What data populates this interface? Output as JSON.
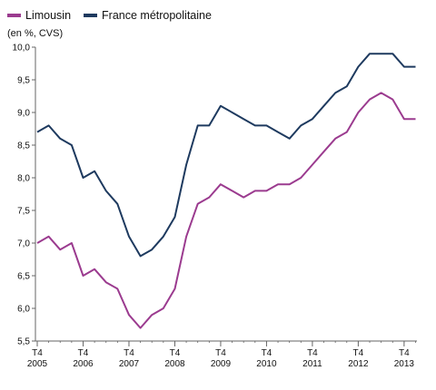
{
  "legend": [
    {
      "name": "Limousin",
      "color": "#9b3b8f"
    },
    {
      "name": "France métropolitaine",
      "color": "#1e3a5f"
    }
  ],
  "unit_label": "(en %, CVS)",
  "chart_data": {
    "type": "line",
    "title": "",
    "xlabel": "",
    "ylabel": "(en %, CVS)",
    "ylim": [
      5.5,
      10.0
    ],
    "y_ticks": [
      "5,5",
      "6,0",
      "6,5",
      "7,0",
      "7,5",
      "8,0",
      "8,5",
      "9,0",
      "9,5",
      "10,0"
    ],
    "x_tick_labels": [
      {
        "quarter": "T4",
        "year": "2005"
      },
      {
        "quarter": "T4",
        "year": "2006"
      },
      {
        "quarter": "T4",
        "year": "2007"
      },
      {
        "quarter": "T4",
        "year": "2008"
      },
      {
        "quarter": "T4",
        "year": "2009"
      },
      {
        "quarter": "T4",
        "year": "2010"
      },
      {
        "quarter": "T4",
        "year": "2011"
      },
      {
        "quarter": "T4",
        "year": "2012"
      },
      {
        "quarter": "T4",
        "year": "2013"
      }
    ],
    "x": [
      "T4 2005",
      "T1 2006",
      "T2 2006",
      "T3 2006",
      "T4 2006",
      "T1 2007",
      "T2 2007",
      "T3 2007",
      "T4 2007",
      "T1 2008",
      "T2 2008",
      "T3 2008",
      "T4 2008",
      "T1 2009",
      "T2 2009",
      "T3 2009",
      "T4 2009",
      "T1 2010",
      "T2 2010",
      "T3 2010",
      "T4 2010",
      "T1 2011",
      "T2 2011",
      "T3 2011",
      "T4 2011",
      "T1 2012",
      "T2 2012",
      "T3 2012",
      "T4 2012",
      "T1 2013",
      "T2 2013",
      "T3 2013",
      "T4 2013",
      "T1 2014"
    ],
    "series": [
      {
        "name": "Limousin",
        "color": "#9b3b8f",
        "values": [
          7.0,
          7.1,
          6.9,
          7.0,
          6.5,
          6.6,
          6.4,
          6.3,
          5.9,
          5.7,
          5.9,
          6.0,
          6.3,
          7.1,
          7.6,
          7.7,
          7.9,
          7.8,
          7.7,
          7.8,
          7.8,
          7.9,
          7.9,
          8.0,
          8.2,
          8.4,
          8.6,
          8.7,
          9.0,
          9.2,
          9.3,
          9.2,
          8.9,
          8.9
        ]
      },
      {
        "name": "France métropolitaine",
        "color": "#1e3a5f",
        "values": [
          8.7,
          8.8,
          8.6,
          8.5,
          8.0,
          8.1,
          7.8,
          7.6,
          7.1,
          6.8,
          6.9,
          7.1,
          7.4,
          8.2,
          8.8,
          8.8,
          9.1,
          9.0,
          8.9,
          8.8,
          8.8,
          8.7,
          8.6,
          8.8,
          8.9,
          9.1,
          9.3,
          9.4,
          9.7,
          9.9,
          9.9,
          9.9,
          9.7,
          9.7
        ]
      }
    ],
    "grid": false,
    "legend_position": "top-left"
  }
}
